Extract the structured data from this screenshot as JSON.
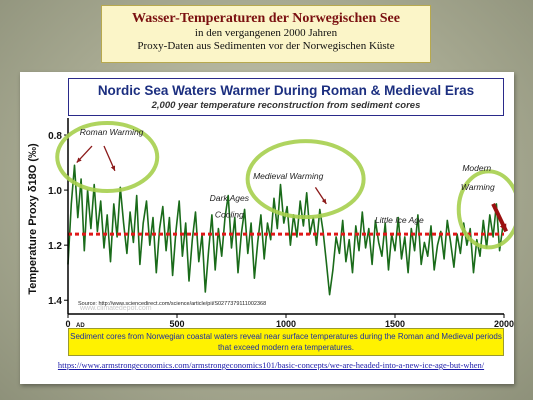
{
  "slide_title": {
    "main": "Wasser-Temperaturen der Norwegischen See",
    "line2": "in den vergangenen 2000 Jahren",
    "line3": "Proxy-Daten aus Sedimenten vor der Norwegischen Küste"
  },
  "chart_data": {
    "type": "line",
    "title": "Nordic Sea Waters Warmer During Roman & Medieval Eras",
    "subtitle": "2,000 year temperature reconstruction from sediment cores",
    "ylabel": "Temperature Proxy δ18O (‰)",
    "x_ticks": [
      "0",
      "500",
      "1000",
      "1500",
      "2000"
    ],
    "x_tick_suffix": "AD",
    "y_ticks": [
      "0.8",
      "1.0",
      "1.2",
      "1.4"
    ],
    "xlim": [
      0,
      2000
    ],
    "ylim": [
      1.45,
      0.76
    ],
    "y_inverted": true,
    "series_color": "#1a6b1a",
    "reference_line": {
      "value": 1.16,
      "color": "#e01818"
    },
    "source": "Source: http://www.sciencedirect.com/science/article/pii/S0277379111002368",
    "watermark": "www.climatedepot.com",
    "x": [
      0,
      15,
      30,
      45,
      60,
      75,
      90,
      105,
      120,
      135,
      150,
      165,
      180,
      195,
      210,
      225,
      240,
      255,
      270,
      285,
      300,
      315,
      330,
      345,
      360,
      375,
      390,
      405,
      420,
      435,
      450,
      465,
      480,
      495,
      510,
      525,
      540,
      555,
      570,
      585,
      600,
      615,
      630,
      645,
      660,
      675,
      690,
      705,
      720,
      735,
      750,
      765,
      780,
      795,
      810,
      825,
      840,
      855,
      870,
      885,
      900,
      915,
      930,
      945,
      960,
      975,
      990,
      1005,
      1020,
      1035,
      1050,
      1065,
      1080,
      1095,
      1110,
      1125,
      1140,
      1155,
      1170,
      1185,
      1200,
      1215,
      1230,
      1245,
      1260,
      1275,
      1290,
      1305,
      1320,
      1335,
      1350,
      1365,
      1380,
      1395,
      1410,
      1425,
      1440,
      1455,
      1470,
      1485,
      1500,
      1515,
      1530,
      1545,
      1560,
      1575,
      1590,
      1605,
      1620,
      1635,
      1650,
      1665,
      1680,
      1695,
      1710,
      1725,
      1740,
      1755,
      1770,
      1785,
      1800,
      1815,
      1830,
      1845,
      1860,
      1875,
      1890,
      1905,
      1920,
      1935,
      1950,
      1965,
      1980,
      1995
    ],
    "values": [
      1.27,
      1.05,
      0.91,
      1.1,
      0.96,
      1.22,
      1.0,
      1.14,
      0.98,
      1.15,
      1.04,
      1.21,
      1.09,
      1.26,
      1.05,
      1.17,
      0.99,
      1.12,
      1.23,
      1.08,
      1.19,
      1.02,
      1.27,
      1.12,
      1.04,
      1.2,
      1.1,
      1.3,
      1.14,
      1.06,
      1.22,
      1.1,
      1.31,
      1.15,
      1.04,
      1.24,
      1.12,
      1.33,
      1.18,
      1.08,
      1.26,
      1.16,
      1.37,
      1.22,
      1.09,
      1.29,
      1.14,
      1.24,
      1.1,
      1.02,
      1.21,
      1.1,
      1.3,
      1.16,
      1.07,
      1.23,
      1.12,
      1.32,
      1.19,
      1.09,
      1.25,
      1.12,
      1.18,
      1.03,
      1.14,
      0.98,
      1.12,
      1.06,
      1.2,
      1.09,
      1.17,
      1.04,
      1.13,
      1.01,
      1.16,
      1.1,
      1.2,
      1.07,
      1.15,
      1.26,
      1.38,
      1.29,
      1.17,
      1.23,
      1.11,
      1.26,
      1.18,
      1.3,
      1.13,
      1.22,
      1.08,
      1.21,
      1.14,
      1.27,
      1.11,
      1.19,
      1.24,
      1.12,
      1.29,
      1.16,
      1.22,
      1.1,
      1.25,
      1.17,
      1.3,
      1.14,
      1.22,
      1.09,
      1.27,
      1.19,
      1.24,
      1.13,
      1.29,
      1.2,
      1.15,
      1.25,
      1.11,
      1.19,
      1.28,
      1.16,
      1.23,
      1.12,
      1.2,
      1.14,
      1.3,
      1.18,
      1.24,
      1.11,
      1.21,
      1.09,
      1.17,
      1.05,
      1.22,
      1.13
    ],
    "annotations": [
      {
        "text": "Roman Warming",
        "x": 200,
        "y": 0.8
      },
      {
        "text": "Medieval Warming",
        "x": 1010,
        "y": 0.96
      },
      {
        "text": "Dark Ages",
        "x": 740,
        "y": 1.04
      },
      {
        "text": "Cooling",
        "x": 740,
        "y": 1.1
      },
      {
        "text": "Little Ice Age",
        "x": 1520,
        "y": 1.12
      },
      {
        "text": "Modern",
        "x": 1875,
        "y": 0.93
      },
      {
        "text": "Warming",
        "x": 1880,
        "y": 1.0
      }
    ],
    "highlight_circles": [
      {
        "label": "roman",
        "x": 180,
        "y": 0.88
      },
      {
        "label": "medieval",
        "x": 1090,
        "y": 0.96
      },
      {
        "label": "modern",
        "x": 1930,
        "y": 1.07
      }
    ]
  },
  "caption": "Sediment cores from Norwegian coastal waters reveal near surface temperatures during the Roman and Medieval periods that exceed modern era temperatures.",
  "url": "https://www.armstrongeconomics.com/armstrongeconomics101/basic-concepts/we-are-headed-into-a-new-ice-age-but-when/"
}
